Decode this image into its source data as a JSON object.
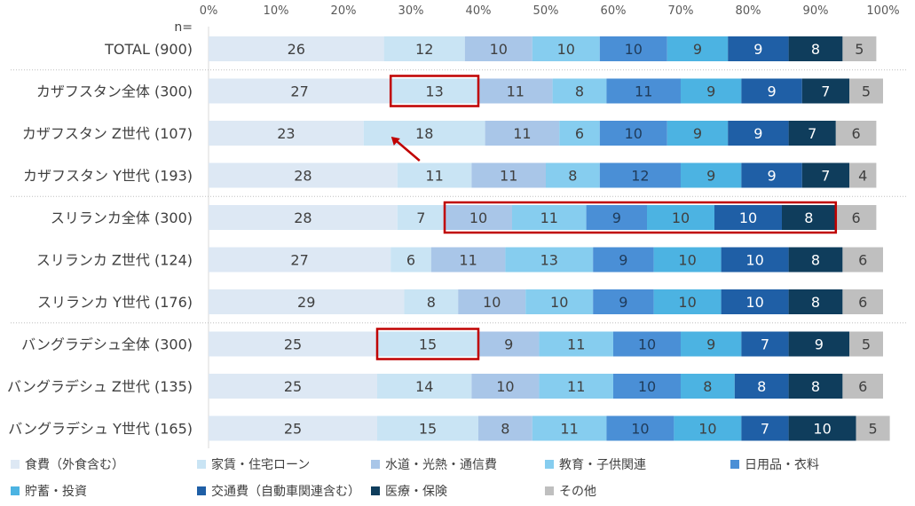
{
  "chart_data": {
    "type": "bar",
    "orientation": "horizontal",
    "stacked": true,
    "n_label": "n=",
    "x_ticks": [
      "0%",
      "10%",
      "20%",
      "30%",
      "40%",
      "50%",
      "60%",
      "70%",
      "80%",
      "90%",
      "100%"
    ],
    "xlim": [
      0,
      100
    ],
    "categories": [
      "TOTAL (900)",
      "カザフスタン全体 (300)",
      "カザフスタン Z世代 (107)",
      "カザフスタン Y世代 (193)",
      "スリランカ全体 (300)",
      "スリランカ Z世代 (124)",
      "スリランカ Y世代 (176)",
      "バングラデシュ全体 (300)",
      "バングラデシュ Z世代 (135)",
      "バングラデシュ Y世代 (165)"
    ],
    "series": [
      {
        "name": "食費（外食含む）",
        "color": "#dde8f4",
        "values": [
          26,
          27,
          23,
          28,
          28,
          27,
          29,
          25,
          25,
          25
        ]
      },
      {
        "name": "家賃・住宅ローン",
        "color": "#c9e4f4",
        "values": [
          12,
          13,
          18,
          11,
          7,
          6,
          8,
          15,
          14,
          15
        ]
      },
      {
        "name": "水道・光熱・通信費",
        "color": "#a9c6e8",
        "values": [
          10,
          11,
          11,
          11,
          10,
          11,
          10,
          9,
          10,
          8
        ]
      },
      {
        "name": "教育・子供関連",
        "color": "#86cdef",
        "values": [
          10,
          8,
          6,
          8,
          11,
          13,
          10,
          11,
          11,
          11
        ]
      },
      {
        "name": "日用品・衣料",
        "color": "#4a8fd6",
        "values": [
          10,
          11,
          10,
          12,
          9,
          9,
          9,
          10,
          10,
          10
        ]
      },
      {
        "name": "貯蓄・投資",
        "color": "#4cb3e2",
        "values": [
          9,
          9,
          9,
          9,
          10,
          10,
          10,
          9,
          8,
          10
        ]
      },
      {
        "name": "交通費（自動車関連含む）",
        "color": "#1f5fa6",
        "values": [
          9,
          9,
          9,
          9,
          10,
          10,
          10,
          7,
          8,
          7
        ]
      },
      {
        "name": "医療・保険",
        "color": "#0f3d5c",
        "values": [
          8,
          7,
          7,
          7,
          8,
          8,
          8,
          9,
          8,
          10
        ]
      },
      {
        "name": "その他",
        "color": "#bfbfbf",
        "values": [
          5,
          5,
          6,
          4,
          6,
          6,
          6,
          5,
          6,
          5
        ]
      }
    ],
    "group_separators_after": [
      0,
      3,
      6
    ],
    "highlights": [
      {
        "category": "カザフスタン全体 (300)",
        "from_series": "家賃・住宅ローン",
        "to_series": "家賃・住宅ローン",
        "color": "#c00000"
      },
      {
        "category": "スリランカ全体 (300)",
        "from_series": "水道・光熱・通信費",
        "to_series": "医療・保険",
        "color": "#c00000"
      },
      {
        "category": "バングラデシュ全体 (300)",
        "from_series": "家賃・住宅ローン",
        "to_series": "家賃・住宅ローン",
        "color": "#c00000"
      }
    ],
    "arrow": {
      "category": "カザフスタン Z世代 (107)",
      "series": "家賃・住宅ローン",
      "color": "#c00000"
    },
    "legend_position": "bottom",
    "grid": false
  }
}
